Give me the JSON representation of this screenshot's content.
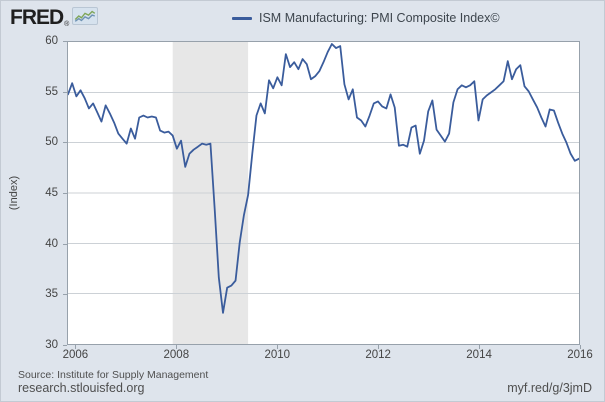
{
  "header": {
    "logo_text": "FRED",
    "logo_reg": "®"
  },
  "legend": {
    "label": "ISM Manufacturing: PMI Composite Index©"
  },
  "footer": {
    "source": "Source: Institute for Supply Management",
    "site": "research.stlouisfed.org",
    "short_url": "myf.red/g/3jmD"
  },
  "theme": {
    "page_background": "#dee4ec",
    "plot_border": "#97a1ab",
    "gridline": "#ccd1d6",
    "text": "#444444"
  },
  "chart_data": {
    "type": "line",
    "title": "ISM Manufacturing: PMI Composite Index©",
    "xlabel": "",
    "ylabel": "(Index)",
    "ylim": [
      30,
      60
    ],
    "y_ticks": [
      60,
      55,
      50,
      45,
      40,
      35,
      30
    ],
    "x_tick_years": [
      "2006",
      "2008",
      "2010",
      "2012",
      "2014",
      "2016"
    ],
    "x_start": "2005-11",
    "x_end": "2016-01",
    "frequency": "monthly",
    "grid": "horizontal",
    "legend_position": "top",
    "recession_band": {
      "start": "2007-12",
      "end": "2009-06"
    },
    "line_color": "#3a5c9c",
    "recession_color": "#e7e7e7",
    "values": [
      54.8,
      55.9,
      54.6,
      55.2,
      54.4,
      53.4,
      53.9,
      53.0,
      52.1,
      53.7,
      52.9,
      52.0,
      50.9,
      50.4,
      49.9,
      51.4,
      50.4,
      52.5,
      52.7,
      52.5,
      52.6,
      52.5,
      51.2,
      51.0,
      51.1,
      50.7,
      49.4,
      50.2,
      47.6,
      48.9,
      49.3,
      49.6,
      49.9,
      49.8,
      49.9,
      43.5,
      36.6,
      33.1,
      35.6,
      35.8,
      36.3,
      40.1,
      42.8,
      44.8,
      48.9,
      52.7,
      53.9,
      52.9,
      56.2,
      55.4,
      56.5,
      55.7,
      58.8,
      57.5,
      58.0,
      57.3,
      58.3,
      57.8,
      56.3,
      56.6,
      57.1,
      58.0,
      59.0,
      59.8,
      59.4,
      59.6,
      55.8,
      54.3,
      55.3,
      52.5,
      52.2,
      51.6,
      52.7,
      53.9,
      54.1,
      53.6,
      53.4,
      54.8,
      53.5,
      49.7,
      49.8,
      49.6,
      51.5,
      51.7,
      48.9,
      50.2,
      53.1,
      54.2,
      51.3,
      50.7,
      50.1,
      50.9,
      54.0,
      55.3,
      55.7,
      55.5,
      55.7,
      56.1,
      52.2,
      54.3,
      54.7,
      55.0,
      55.3,
      55.7,
      56.1,
      58.1,
      56.3,
      57.3,
      57.7,
      55.6,
      55.1,
      54.3,
      53.5,
      52.5,
      51.6,
      53.3,
      53.2,
      52.0,
      50.9,
      50.0,
      48.9,
      48.2,
      48.4
    ]
  }
}
